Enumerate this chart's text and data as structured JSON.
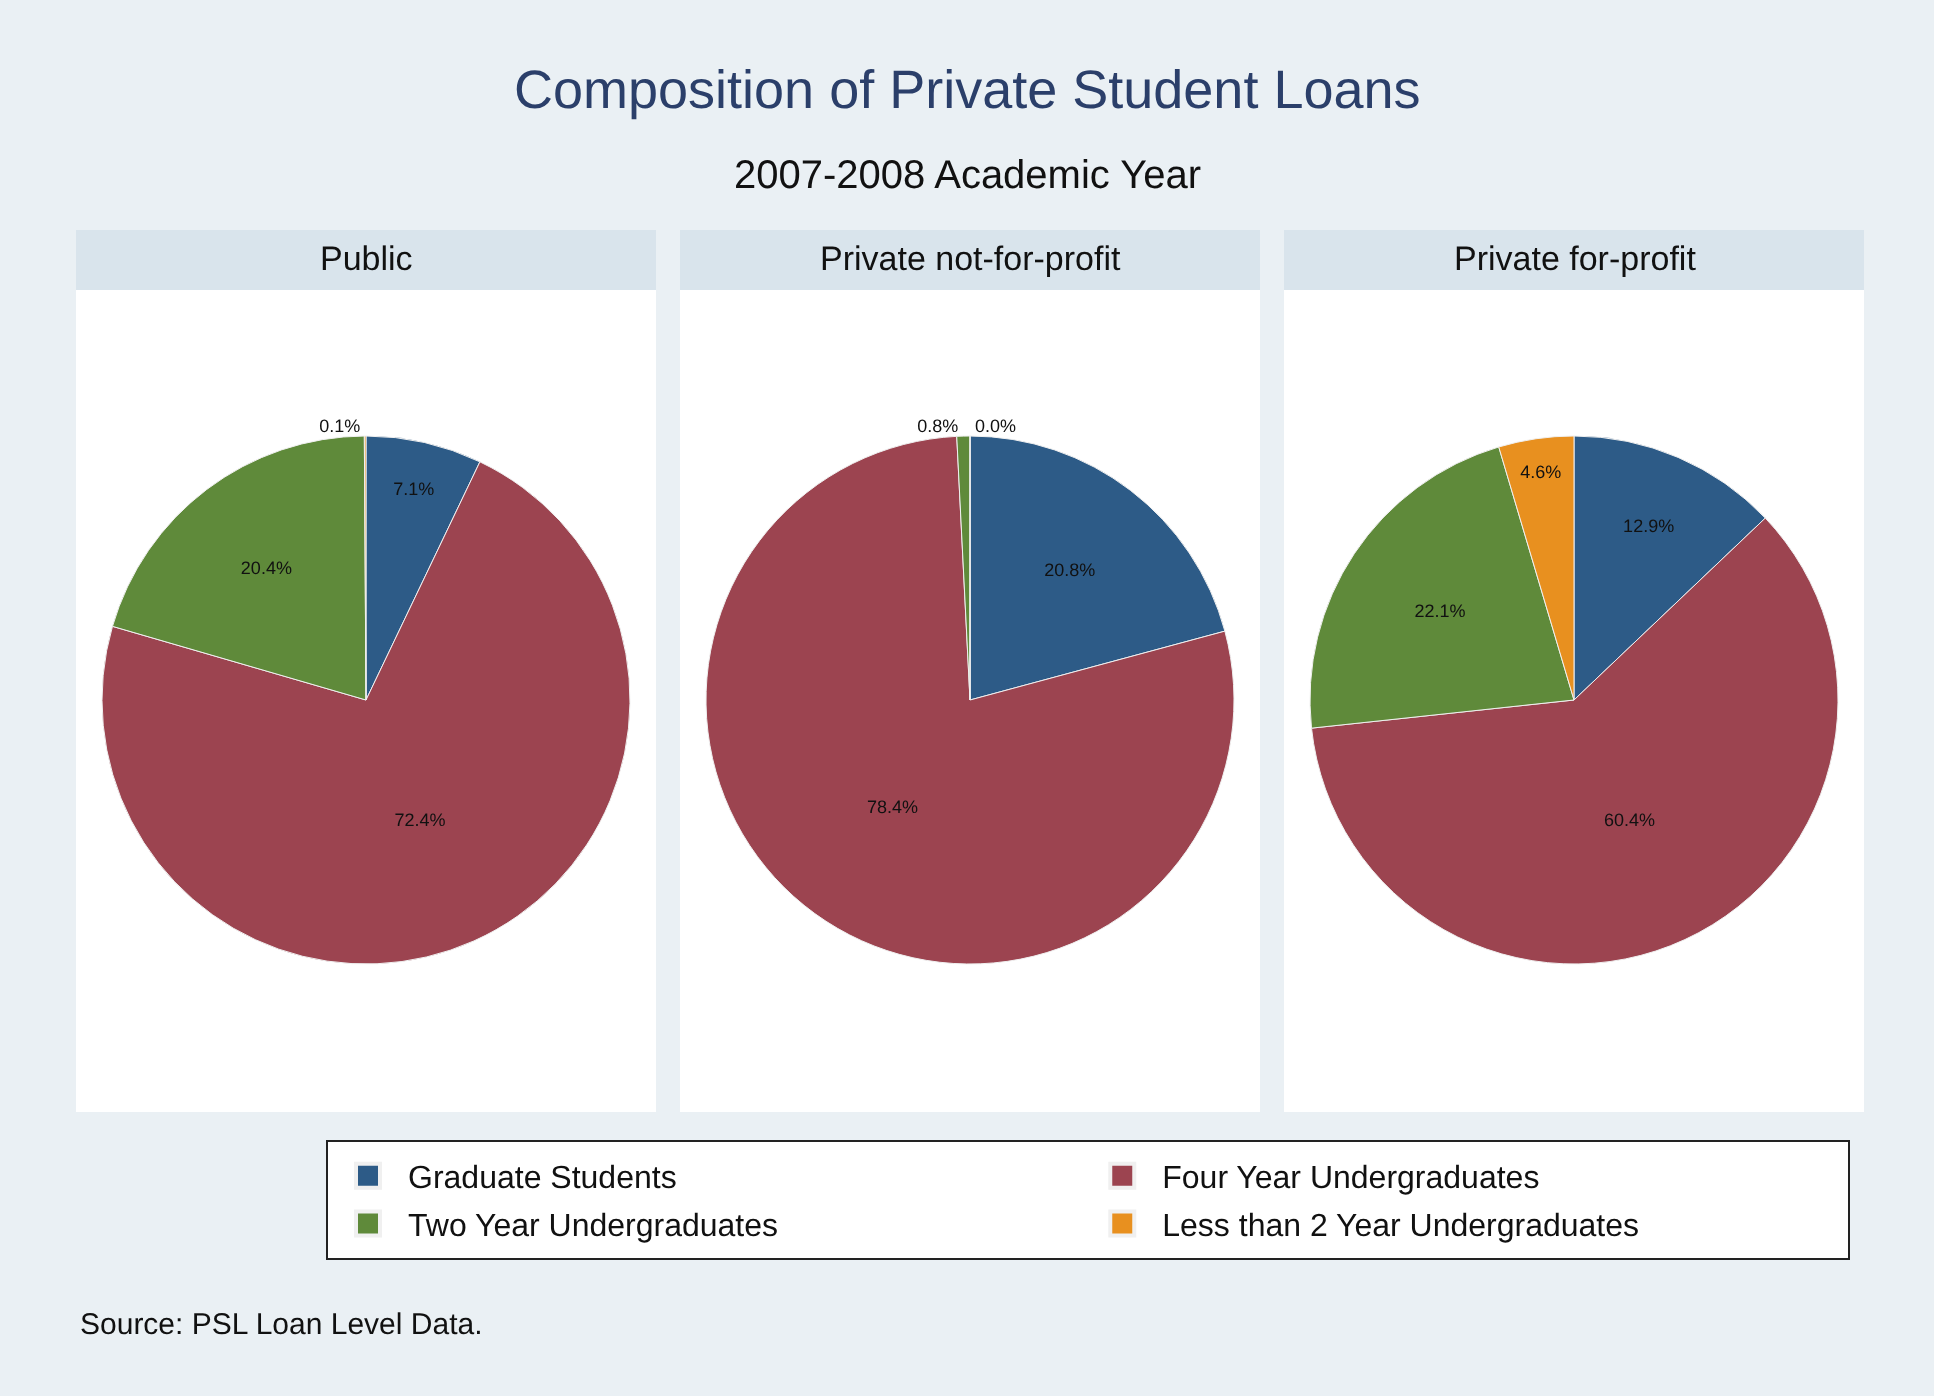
{
  "chart_data": [
    {
      "type": "pie",
      "title": "Public",
      "categories": [
        "Graduate Students",
        "Four Year Undergraduates",
        "Two Year Undergraduates",
        "Less than 2 Year Undergraduates"
      ],
      "values": [
        7.1,
        72.4,
        20.4,
        0.1
      ],
      "value_labels": [
        "7.1%",
        "72.4%",
        "20.4%",
        "0.1%"
      ],
      "colors": [
        "#2d5b87",
        "#9c4450",
        "#5f8a3a",
        "#e8901f"
      ],
      "legend": "bottom",
      "annotations": [
        "Composition of Private Student Loans",
        "2007-2008 Academic Year",
        "Source: PSL Loan Level Data."
      ]
    },
    {
      "type": "pie",
      "title": "Private not-for-profit",
      "categories": [
        null,
        null,
        null,
        null
      ],
      "values": [
        20.8,
        78.4,
        0.8,
        0.0
      ],
      "value_labels": [
        "20.8%",
        "78.4%",
        "0.8%",
        "0.0%"
      ],
      "colors": [
        "#2d5b87",
        "#9c4450",
        "#5f8a3a",
        "#e8901f"
      ]
    },
    {
      "type": "pie",
      "title": "Private for-profit",
      "categories": [
        null,
        null,
        null,
        null
      ],
      "values": [
        12.9,
        60.4,
        22.1,
        4.6
      ],
      "value_labels": [
        "12.9%",
        "60.4%",
        "22.1%",
        "4.6%"
      ],
      "colors": [
        "#2d5b87",
        "#9c4450",
        "#5f8a3a",
        "#e8901f"
      ]
    }
  ]
}
